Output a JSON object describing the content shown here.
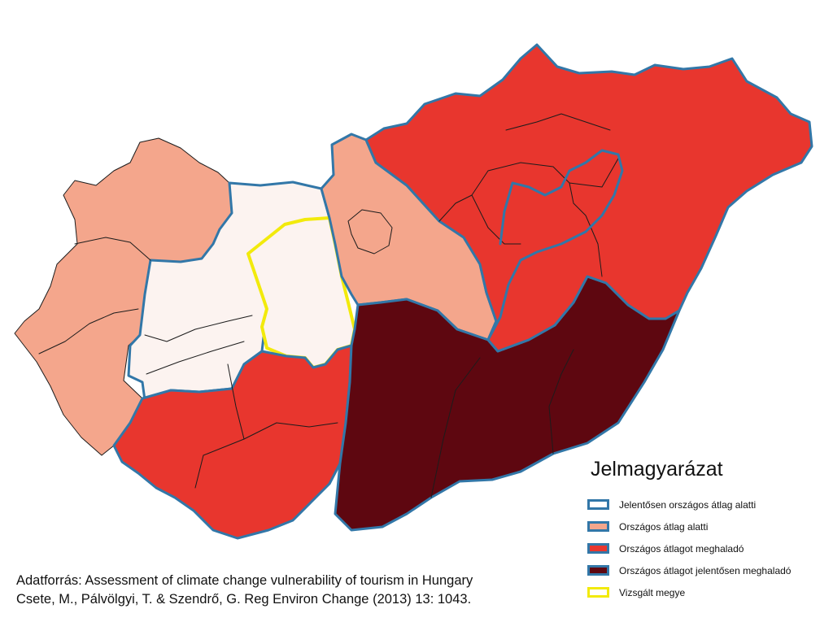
{
  "colors": {
    "significantly_below": "#fcf3f0",
    "below": "#f4a68c",
    "above": "#e8362e",
    "significantly_above": "#5e0710",
    "county_border": "#1c1c1c",
    "region_border": "#3277a8",
    "highlight_border": "#f2ea0c"
  },
  "legend": {
    "title": "Jelmagyarázat",
    "items": [
      {
        "label": "Jelentősen országos átlag alatti",
        "fill": "#ffffff",
        "border": "#3277a8"
      },
      {
        "label": "Országos átlag alatti",
        "fill": "#f4a68c",
        "border": "#3277a8"
      },
      {
        "label": "Országos átlagot meghaladó",
        "fill": "#e8362e",
        "border": "#3277a8"
      },
      {
        "label": "Országos átlagot jelentősen meghaladó",
        "fill": "#5e0710",
        "border": "#3277a8"
      },
      {
        "label": "Vizsgált megye",
        "fill": "#ffffff",
        "border": "#f2ea0c"
      }
    ]
  },
  "source": {
    "line1": "Adatforrás: Assessment of climate change vulnerability of tourism in Hungary",
    "line2": "Csete, M., Pálvölgyi, T. & Szendrő, G. Reg Environ Change (2013) 13: 1043."
  }
}
